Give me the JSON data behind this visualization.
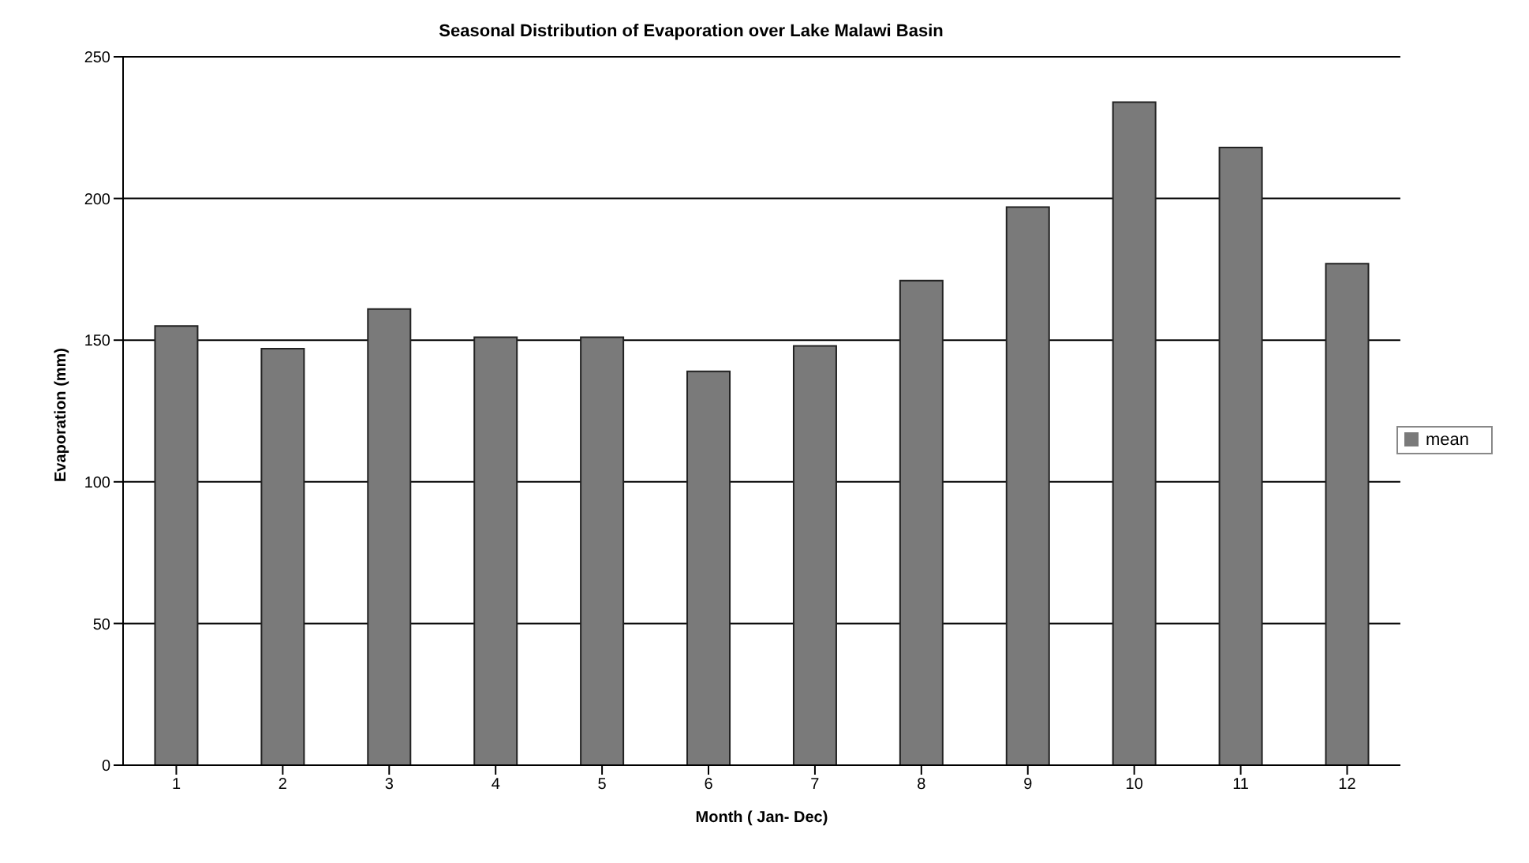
{
  "chart_data": {
    "type": "bar",
    "title": "Seasonal Distribution of Evaporation over Lake Malawi Basin",
    "xlabel": "Month ( Jan- Dec)",
    "ylabel": "Evaporation (mm)",
    "categories": [
      "1",
      "2",
      "3",
      "4",
      "5",
      "6",
      "7",
      "8",
      "9",
      "10",
      "11",
      "12"
    ],
    "series": [
      {
        "name": "mean",
        "color": "#7a7a7a",
        "values": [
          155,
          147,
          161,
          151,
          151,
          139,
          148,
          171,
          197,
          234,
          218,
          177
        ]
      }
    ],
    "ylim": [
      0,
      250
    ],
    "yticks": [
      0,
      50,
      100,
      150,
      200,
      250
    ],
    "grid": "y",
    "legend": "right"
  }
}
